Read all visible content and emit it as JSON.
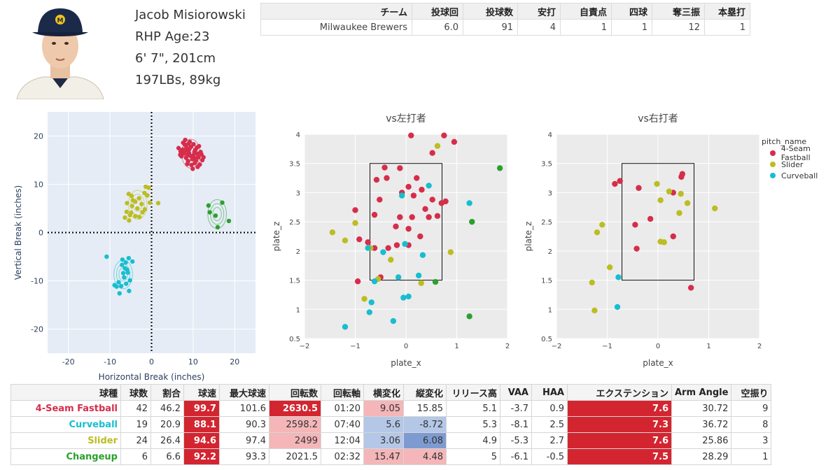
{
  "player": {
    "name": "Jacob Misiorowski",
    "role_age": "RHP Age:23",
    "height": "6' 7\", 201cm",
    "weight": "197LBs, 89kg"
  },
  "summary": {
    "headers": [
      "チーム",
      "投球回",
      "投球数",
      "安打",
      "自責点",
      "四球",
      "奪三振",
      "本塁打"
    ],
    "row": [
      "Milwaukee Brewers",
      "6.0",
      "91",
      "4",
      "1",
      "1",
      "12",
      "1"
    ]
  },
  "colors": {
    "fastball": "#d62d4b",
    "slider": "#bcbd22",
    "curveball": "#17becf",
    "changeup": "#2ca02c",
    "plot_bg": "#e5ecf6",
    "loc_bg": "#ebebeb"
  },
  "chart_data": [
    {
      "type": "scatter",
      "xlabel": "Horizontal Break (inches)",
      "ylabel": "Vertical Break (inches)",
      "xlim": [
        -25,
        25
      ],
      "ylim": [
        -25,
        25
      ],
      "xticks": [
        -20,
        -10,
        0,
        10,
        20
      ],
      "yticks": [
        -20,
        -10,
        0,
        10,
        20
      ],
      "series": [
        {
          "name": "4-Seam Fastball",
          "color_key": "fastball",
          "points": [
            [
              6.5,
              17.5
            ],
            [
              7,
              16.8
            ],
            [
              7.5,
              17.2
            ],
            [
              8,
              18.2
            ],
            [
              8.5,
              17
            ],
            [
              9,
              16.5
            ],
            [
              9.5,
              17.8
            ],
            [
              10,
              16
            ],
            [
              10.5,
              17.1
            ],
            [
              11,
              16.3
            ],
            [
              7.2,
              15.8
            ],
            [
              8.3,
              15.5
            ],
            [
              9.8,
              15.2
            ],
            [
              8.8,
              14.8
            ],
            [
              10.4,
              14.4
            ],
            [
              11.3,
              15.6
            ],
            [
              7.8,
              16.4
            ],
            [
              9.2,
              18.8
            ],
            [
              10.1,
              18.3
            ],
            [
              8.1,
              19.2
            ],
            [
              11.6,
              14.1
            ],
            [
              12.2,
              15
            ],
            [
              9.6,
              14
            ],
            [
              7.4,
              16.9
            ],
            [
              8.7,
              16.1
            ],
            [
              10.9,
              17.6
            ],
            [
              11.8,
              16.7
            ],
            [
              9.3,
              15.9
            ],
            [
              8.4,
              17.6
            ],
            [
              10.6,
              15.4
            ],
            [
              7.6,
              18.6
            ],
            [
              12,
              16.2
            ],
            [
              11.1,
              13.6
            ],
            [
              9.9,
              13.2
            ],
            [
              8.9,
              18.4
            ],
            [
              10.3,
              16.7
            ],
            [
              6.9,
              16.1
            ],
            [
              12.5,
              15.6
            ],
            [
              11.4,
              17.9
            ],
            [
              8.6,
              14.2
            ],
            [
              9.1,
              17.3
            ],
            [
              10.7,
              14.9
            ]
          ]
        },
        {
          "name": "Slider",
          "color_key": "slider",
          "points": [
            [
              -5.5,
              8
            ],
            [
              -4.8,
              7.6
            ],
            [
              -1.4,
              9.5
            ],
            [
              -0.7,
              9.3
            ],
            [
              -1.7,
              8.2
            ],
            [
              -3.9,
              6.4
            ],
            [
              -2.4,
              5.9
            ],
            [
              -5.9,
              6.1
            ],
            [
              -4.7,
              5.5
            ],
            [
              -3.4,
              5
            ],
            [
              -1.6,
              4.8
            ],
            [
              -0.4,
              6.2
            ],
            [
              1.6,
              6.1
            ],
            [
              -6,
              4.3
            ],
            [
              -4.9,
              4.1
            ],
            [
              -3.9,
              3.4
            ],
            [
              -6.4,
              3.1
            ],
            [
              -5.4,
              2.5
            ],
            [
              -2.9,
              3.2
            ],
            [
              -4.5,
              6.7
            ],
            [
              -3,
              7.1
            ],
            [
              -5.2,
              3.6
            ],
            [
              -1,
              7.7
            ],
            [
              -2.2,
              4.2
            ]
          ]
        },
        {
          "name": "Curveball",
          "color_key": "curveball",
          "points": [
            [
              -10.8,
              -5
            ],
            [
              -7,
              -5.6
            ],
            [
              -6.2,
              -6.2
            ],
            [
              -5.5,
              -5.3
            ],
            [
              -6.4,
              -7.4
            ],
            [
              -5.7,
              -8.3
            ],
            [
              -6.6,
              -9.3
            ],
            [
              -7.9,
              -10.3
            ],
            [
              -8.4,
              -11.2
            ],
            [
              -8.9,
              -10.9
            ],
            [
              -7.3,
              -11.1
            ],
            [
              -6.1,
              -10.6
            ],
            [
              -5.2,
              -9.9
            ],
            [
              -5.9,
              -7.7
            ],
            [
              -7.1,
              -6.7
            ],
            [
              -5.4,
              -12.1
            ],
            [
              -7.7,
              -12.6
            ],
            [
              -6.8,
              -8.4
            ],
            [
              -4.6,
              -6
            ]
          ]
        },
        {
          "name": "Changeup",
          "color_key": "changeup",
          "points": [
            [
              14,
              4.2
            ],
            [
              15.4,
              3.5
            ],
            [
              17,
              6.2
            ],
            [
              18.6,
              2.4
            ],
            [
              15.9,
              1.1
            ],
            [
              13.7,
              5.6
            ]
          ]
        }
      ]
    },
    {
      "type": "scatter",
      "title": "vs左打者",
      "xlabel": "plate_x",
      "ylabel": "plate_z",
      "xlim": [
        -2,
        2
      ],
      "ylim": [
        0.5,
        4
      ],
      "xticks": [
        -2,
        -1,
        0,
        1,
        2
      ],
      "yticks": [
        0.5,
        1,
        1.5,
        2,
        2.5,
        3,
        3.5,
        4
      ],
      "strike_zone": {
        "x": [
          -0.71,
          0.71
        ],
        "z": [
          1.5,
          3.5
        ]
      },
      "series": [
        {
          "name": "4-Seam Fastball",
          "color_key": "fastball",
          "points": [
            [
              0.1,
              3.98
            ],
            [
              0.75,
              3.98
            ],
            [
              0.52,
              3.68
            ],
            [
              0.95,
              3.87
            ],
            [
              -0.42,
              3.43
            ],
            [
              -0.38,
              3.25
            ],
            [
              -0.12,
              3.42
            ],
            [
              0.21,
              3.25
            ],
            [
              -0.58,
              3.22
            ],
            [
              0.05,
              3.1
            ],
            [
              -0.08,
              3.0
            ],
            [
              0.31,
              3.05
            ],
            [
              0.15,
              2.95
            ],
            [
              0.52,
              2.88
            ],
            [
              -0.52,
              2.88
            ],
            [
              0.7,
              2.82
            ],
            [
              0.78,
              2.85
            ],
            [
              0.38,
              2.72
            ],
            [
              -0.62,
              2.62
            ],
            [
              0.12,
              2.58
            ],
            [
              -0.12,
              2.58
            ],
            [
              -1.0,
              2.7
            ],
            [
              0.45,
              2.58
            ],
            [
              0.05,
              2.38
            ],
            [
              -0.2,
              2.42
            ],
            [
              -0.35,
              2.05
            ],
            [
              0.28,
              2.25
            ],
            [
              -0.92,
              2.2
            ],
            [
              -0.62,
              2.05
            ],
            [
              0.05,
              2.1
            ],
            [
              -0.5,
              1.55
            ],
            [
              -0.95,
              1.48
            ],
            [
              -0.18,
              2.1
            ],
            [
              0.62,
              2.6
            ],
            [
              -0.75,
              2.15
            ]
          ]
        },
        {
          "name": "Slider",
          "color_key": "slider",
          "points": [
            [
              -1.45,
              2.32
            ],
            [
              -1.2,
              2.18
            ],
            [
              -1.0,
              2.48
            ],
            [
              -0.7,
              2.05
            ],
            [
              0.62,
              3.8
            ],
            [
              0.88,
              1.98
            ],
            [
              -0.3,
              1.85
            ],
            [
              -0.82,
              1.18
            ],
            [
              0.3,
              1.45
            ],
            [
              -0.55,
              1.52
            ]
          ]
        },
        {
          "name": "Curveball",
          "color_key": "curveball",
          "points": [
            [
              -0.08,
              2.95
            ],
            [
              0.45,
              3.12
            ],
            [
              -0.75,
              2.05
            ],
            [
              -0.45,
              1.98
            ],
            [
              0.33,
              1.93
            ],
            [
              -0.02,
              2.12
            ],
            [
              1.25,
              2.82
            ],
            [
              -0.62,
              1.48
            ],
            [
              -0.15,
              1.55
            ],
            [
              0.25,
              1.58
            ],
            [
              -0.05,
              1.2
            ],
            [
              0.05,
              1.22
            ],
            [
              -0.68,
              1.12
            ],
            [
              -0.72,
              0.95
            ],
            [
              -0.25,
              0.8
            ],
            [
              -1.2,
              0.7
            ]
          ]
        },
        {
          "name": "Changeup",
          "color_key": "changeup",
          "points": [
            [
              1.85,
              3.42
            ],
            [
              1.3,
              2.5
            ],
            [
              0.58,
              1.47
            ],
            [
              1.25,
              0.88
            ]
          ]
        }
      ]
    },
    {
      "type": "scatter",
      "title": "vs右打者",
      "xlabel": "plate_x",
      "ylabel": "plate_z",
      "xlim": [
        -2,
        2
      ],
      "ylim": [
        0.5,
        4
      ],
      "xticks": [
        -2,
        -1,
        0,
        1,
        2
      ],
      "yticks": [
        0.5,
        1,
        1.5,
        2,
        2.5,
        3,
        3.5,
        4
      ],
      "strike_zone": {
        "x": [
          -0.71,
          0.71
        ],
        "z": [
          1.5,
          3.5
        ]
      },
      "series": [
        {
          "name": "4-Seam Fastball",
          "color_key": "fastball",
          "points": [
            [
              -0.75,
              3.2
            ],
            [
              -0.85,
              3.15
            ],
            [
              -0.38,
              3.08
            ],
            [
              0.48,
              3.32
            ],
            [
              0.46,
              3.27
            ],
            [
              0.3,
              3.0
            ],
            [
              -0.15,
              2.55
            ],
            [
              -0.45,
              2.45
            ],
            [
              0.3,
              2.25
            ],
            [
              -0.42,
              2.04
            ],
            [
              0.65,
              1.37
            ]
          ]
        },
        {
          "name": "Slider",
          "color_key": "slider",
          "points": [
            [
              -0.02,
              3.15
            ],
            [
              0.22,
              3.02
            ],
            [
              0.45,
              2.98
            ],
            [
              0.05,
              2.87
            ],
            [
              0.58,
              2.82
            ],
            [
              0.42,
              2.65
            ],
            [
              1.12,
              2.73
            ],
            [
              -1.1,
              2.45
            ],
            [
              -1.2,
              2.32
            ],
            [
              0.05,
              2.16
            ],
            [
              0.12,
              2.15
            ],
            [
              -0.95,
              1.72
            ],
            [
              -1.3,
              1.46
            ],
            [
              -1.25,
              0.98
            ]
          ]
        },
        {
          "name": "Curveball",
          "color_key": "curveball",
          "points": [
            [
              -0.78,
              1.55
            ],
            [
              -0.8,
              1.04
            ]
          ]
        }
      ]
    }
  ],
  "legend": {
    "title": "pitch_name",
    "items": [
      {
        "label": "4-Seam Fastball",
        "color_key": "fastball"
      },
      {
        "label": "Slider",
        "color_key": "slider"
      },
      {
        "label": "Curveball",
        "color_key": "curveball"
      }
    ]
  },
  "pitch_table": {
    "headers": [
      "球種",
      "球数",
      "割合",
      "球速",
      "最大球速",
      "回転数",
      "回転軸",
      "横変化",
      "縦変化",
      "リリース高",
      "VAA",
      "HAA",
      "エクステンション",
      "Arm Angle",
      "空振り"
    ],
    "rows": [
      {
        "color_key": "fastball",
        "styles": [
          "",
          "",
          "",
          "dark",
          "",
          "dark",
          "",
          "light",
          "",
          "",
          "",
          "",
          "dark",
          "",
          ""
        ],
        "cells": [
          "4-Seam Fastball",
          "42",
          "46.2",
          "99.7",
          "101.6",
          "2630.5",
          "01:20",
          "9.05",
          "15.85",
          "5.1",
          "-3.7",
          "0.9",
          "7.6",
          "30.72",
          "9"
        ]
      },
      {
        "color_key": "curveball",
        "styles": [
          "",
          "",
          "",
          "dark",
          "",
          "light",
          "",
          "blue",
          "blue",
          "",
          "",
          "",
          "dark",
          "",
          ""
        ],
        "cells": [
          "Curveball",
          "19",
          "20.9",
          "88.1",
          "90.3",
          "2598.2",
          "07:40",
          "5.6",
          "-8.72",
          "5.3",
          "-8.1",
          "2.5",
          "7.3",
          "36.72",
          "8"
        ]
      },
      {
        "color_key": "slider",
        "styles": [
          "",
          "",
          "",
          "dark",
          "",
          "light",
          "",
          "blue",
          "dblue",
          "",
          "",
          "",
          "dark",
          "",
          ""
        ],
        "cells": [
          "Slider",
          "24",
          "26.4",
          "94.6",
          "97.4",
          "2499",
          "12:04",
          "3.06",
          "6.08",
          "4.9",
          "-5.3",
          "2.7",
          "7.6",
          "25.86",
          "3"
        ]
      },
      {
        "color_key": "changeup",
        "styles": [
          "",
          "",
          "",
          "dark",
          "",
          "",
          "",
          "light",
          "light",
          "",
          "",
          "",
          "dark",
          "",
          ""
        ],
        "cells": [
          "Changeup",
          "6",
          "6.6",
          "92.2",
          "93.3",
          "2021.5",
          "02:32",
          "15.47",
          "4.48",
          "5",
          "-6.1",
          "-0.5",
          "7.5",
          "28.29",
          "1"
        ]
      }
    ]
  }
}
